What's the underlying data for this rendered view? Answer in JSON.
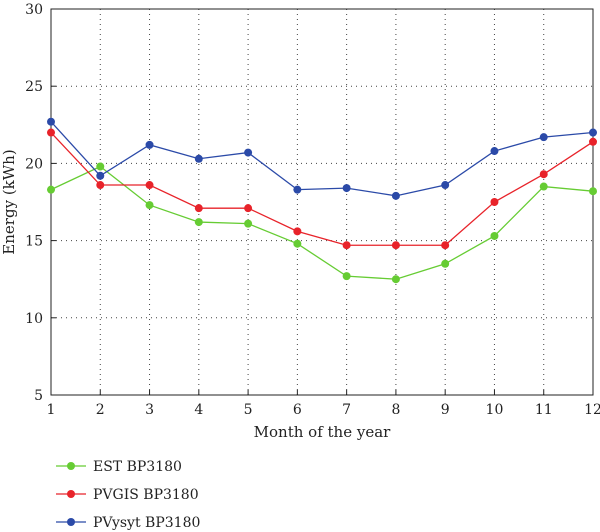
{
  "chart_data": {
    "type": "line",
    "title": "",
    "xlabel": "Month of the year",
    "ylabel": "Energy (kWh)",
    "x": [
      1,
      2,
      3,
      4,
      5,
      6,
      7,
      8,
      9,
      10,
      11,
      12
    ],
    "xlim": [
      1,
      12
    ],
    "ylim": [
      5,
      30
    ],
    "yticks": [
      5,
      10,
      15,
      20,
      25,
      30
    ],
    "grid": true,
    "legend_position": "bottom-left",
    "series": [
      {
        "name": "EST BP3180",
        "color": "#66cc33",
        "values": [
          18.3,
          19.8,
          17.3,
          16.2,
          16.1,
          14.8,
          12.7,
          12.5,
          13.5,
          15.3,
          18.5,
          18.2
        ]
      },
      {
        "name": "PVGIS BP3180",
        "color": "#e8232a",
        "values": [
          22.0,
          18.6,
          18.6,
          17.1,
          17.1,
          15.6,
          14.7,
          14.7,
          14.7,
          17.5,
          19.3,
          21.4
        ]
      },
      {
        "name": "PVysyt BP3180",
        "color": "#2b4aa8",
        "values": [
          22.7,
          19.2,
          21.2,
          20.3,
          20.7,
          18.3,
          18.4,
          17.9,
          18.6,
          20.8,
          21.7,
          22.0
        ]
      }
    ]
  }
}
